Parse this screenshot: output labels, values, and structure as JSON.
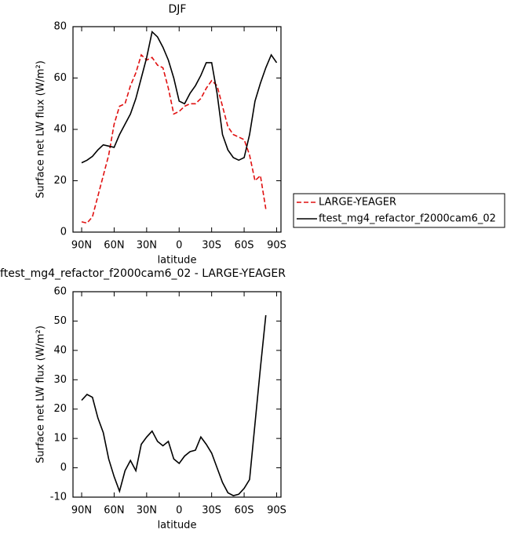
{
  "chart_data": [
    {
      "type": "line",
      "title": "DJF",
      "xlabel": "latitude",
      "ylabel": "Surface net LW flux (W/m²)",
      "x": [
        90,
        85,
        80,
        75,
        70,
        65,
        60,
        55,
        50,
        45,
        40,
        35,
        30,
        25,
        20,
        15,
        10,
        5,
        0,
        -5,
        -10,
        -15,
        -20,
        -25,
        -30,
        -35,
        -40,
        -45,
        -50,
        -55,
        -60,
        -65,
        -70,
        -75,
        -80,
        -85,
        -90
      ],
      "xlim": [
        98,
        -94
      ],
      "xticks": [
        {
          "value": 90,
          "label": "90N"
        },
        {
          "value": 60,
          "label": "60N"
        },
        {
          "value": 30,
          "label": "30N"
        },
        0,
        {
          "value": -30,
          "label": "30S"
        },
        {
          "value": -60,
          "label": "60S"
        },
        {
          "value": -90,
          "label": "90S"
        }
      ],
      "ylim": [
        0,
        80
      ],
      "yticks": [
        0,
        20,
        40,
        60,
        80
      ],
      "legend": "right",
      "series": [
        {
          "name": "LARGE-YEAGER",
          "color": "#e01010",
          "linestyle": "dashed",
          "values": [
            4,
            3.5,
            6,
            14,
            22,
            30,
            42,
            49,
            50,
            57,
            62,
            69,
            67,
            68,
            65,
            64,
            56,
            46,
            47,
            49,
            50,
            50,
            52,
            56,
            59,
            57,
            49,
            41,
            38,
            37,
            36,
            30,
            20,
            22,
            9,
            null,
            null
          ]
        },
        {
          "name": "ftest_mg4_refactor_f2000cam6_02",
          "color": "#000000",
          "linestyle": "solid",
          "values": [
            27,
            28,
            29.5,
            32,
            34,
            33.5,
            33,
            38,
            42,
            46,
            52,
            60,
            68,
            78,
            76,
            72,
            67,
            60,
            51,
            50,
            54,
            57,
            61,
            66,
            66,
            54,
            38,
            32,
            29,
            28,
            29,
            38,
            51,
            58,
            64,
            69,
            66
          ]
        }
      ]
    },
    {
      "type": "line",
      "title": "ftest_mg4_refactor_f2000cam6_02 - LARGE-YEAGER",
      "xlabel": "latitude",
      "ylabel": "Surface net LW flux (W/m²)",
      "x": [
        90,
        85,
        80,
        75,
        70,
        65,
        60,
        55,
        50,
        45,
        40,
        35,
        30,
        25,
        20,
        15,
        10,
        5,
        0,
        -5,
        -10,
        -15,
        -20,
        -25,
        -30,
        -35,
        -40,
        -45,
        -50,
        -55,
        -60,
        -65,
        -70,
        -75,
        -80,
        -85,
        -90
      ],
      "xlim": [
        98,
        -94
      ],
      "xticks": [
        {
          "value": 90,
          "label": "90N"
        },
        {
          "value": 60,
          "label": "60N"
        },
        {
          "value": 30,
          "label": "30N"
        },
        0,
        {
          "value": -30,
          "label": "30S"
        },
        {
          "value": -60,
          "label": "60S"
        },
        {
          "value": -90,
          "label": "90S"
        }
      ],
      "ylim": [
        -10,
        60
      ],
      "yticks": [
        -10,
        0,
        10,
        20,
        30,
        40,
        50,
        60
      ],
      "series": [
        {
          "color": "#000000",
          "linestyle": "solid",
          "values": [
            23,
            25,
            24,
            17,
            12,
            3,
            -3,
            -8,
            -1,
            2.5,
            -1,
            8,
            10.5,
            12.5,
            9,
            7.5,
            9,
            3,
            1.5,
            4,
            5.5,
            6,
            10.5,
            8,
            5,
            0,
            -5,
            -8.5,
            -9.5,
            -9,
            -7,
            -4,
            15,
            34,
            52,
            null,
            null
          ]
        }
      ]
    }
  ]
}
